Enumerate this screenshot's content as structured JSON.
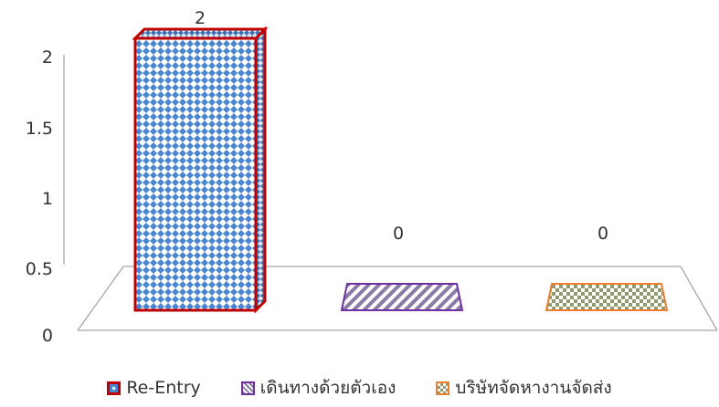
{
  "chart_data": {
    "type": "bar",
    "categories": [
      ""
    ],
    "series": [
      {
        "name": "Re-Entry",
        "values": [
          2
        ],
        "color": "#c00000",
        "pattern": "blue-diamond"
      },
      {
        "name": "เดินทางด้วยตัวเอง",
        "values": [
          0
        ],
        "color": "#7030a0",
        "pattern": "purple-diagonal"
      },
      {
        "name": "บริษัทจัดหางานจัดส่ง",
        "values": [
          0
        ],
        "color": "#ed7d31",
        "pattern": "green-checker"
      }
    ],
    "data_labels": [
      "2",
      "0",
      "0"
    ],
    "y_ticks": [
      "0",
      "0.5",
      "1",
      "1.5",
      "2"
    ],
    "ylim": [
      0,
      2
    ],
    "grid": false,
    "legend": "bottom",
    "three_d": true
  }
}
